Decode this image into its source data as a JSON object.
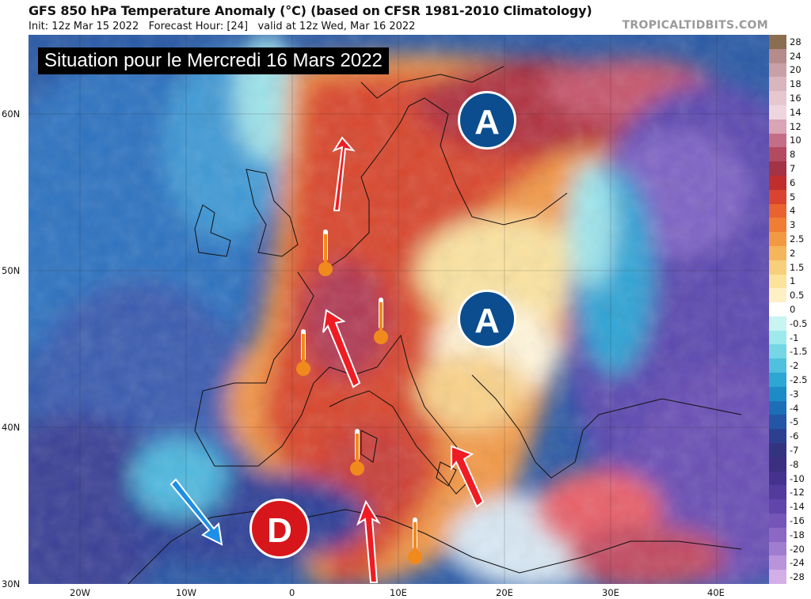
{
  "header": {
    "title": "GFS 850 hPa Temperature Anomaly (°C) (based on CFSR 1981-2010 Climatology)",
    "init": "Init: 12z Mar 15 2022",
    "forecast": "Forecast Hour: [24]",
    "valid": "valid at 12z Wed, Mar 16 2022",
    "brand": "TROPICALTIDBITS.COM"
  },
  "banner": "Situation pour le Mercredi 16 Mars 2022",
  "map": {
    "lat_labels": [
      "60N",
      "50N",
      "40N",
      "30N"
    ],
    "lon_labels": [
      "20W",
      "10W",
      "0",
      "10E",
      "20E",
      "30E",
      "40E"
    ],
    "markers": [
      {
        "label": "A",
        "kind": "high",
        "color": "#0b4d8f"
      },
      {
        "label": "A",
        "kind": "high",
        "color": "#0b4d8f"
      },
      {
        "label": "D",
        "kind": "low",
        "color": "#d7161b"
      }
    ],
    "icons": [
      "thermometer-icon",
      "warm-arrow-icon",
      "cold-arrow-icon"
    ]
  },
  "legend": {
    "labels": [
      "28",
      "24",
      "20",
      "18",
      "16",
      "14",
      "12",
      "10",
      "8",
      "7",
      "6",
      "5",
      "4",
      "3",
      "2.5",
      "2",
      "1.5",
      "1",
      "0.5",
      "0",
      "-0.5",
      "-1",
      "-1.5",
      "-2",
      "-2.5",
      "-3",
      "-4",
      "-5",
      "-6",
      "-7",
      "-8",
      "-10",
      "-12",
      "-14",
      "-16",
      "-18",
      "-20",
      "-24",
      "-28"
    ],
    "colors": [
      "#8b6d50",
      "#b58b8b",
      "#c9a0a6",
      "#d9b5bd",
      "#e6c7d0",
      "#efd5dd",
      "#d9a4b3",
      "#c46d86",
      "#b24a60",
      "#a33345",
      "#bf2d2d",
      "#d9432f",
      "#e8632f",
      "#ef7d34",
      "#f29a43",
      "#f5b55a",
      "#f8cf7a",
      "#fbe39b",
      "#fdf0c4",
      "#ffffff",
      "#c8f4f1",
      "#9ee9ec",
      "#76d6e6",
      "#4fc0dd",
      "#2ca6d3",
      "#1d8bc6",
      "#1c6fb6",
      "#2356a4",
      "#2b418f",
      "#33347f",
      "#3b2f82",
      "#45328f",
      "#523b9c",
      "#6245aa",
      "#7555b8",
      "#8a68c4",
      "#9f7dcf",
      "#b895db",
      "#d2afe6"
    ]
  }
}
